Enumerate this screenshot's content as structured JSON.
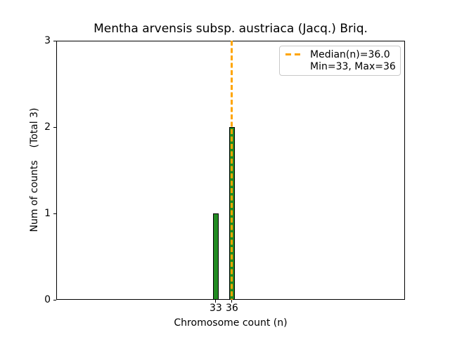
{
  "chart_data": {
    "type": "bar",
    "title": "Mentha arvensis subsp. austriaca (Jacq.) Briq.",
    "xlabel": "Chromosome count (n)",
    "ylabel": "Num of counts    (Total 3)",
    "x": [
      33,
      36
    ],
    "counts": [
      1,
      2
    ],
    "bar_width_data_units": 1,
    "bar_color": "#228b22",
    "bar_edge_color": "#000000",
    "median": {
      "value": 36.0,
      "color": "#ffa500",
      "style": "dashed"
    },
    "min": 33,
    "max": 36,
    "total": 3,
    "xlim": [
      3.4,
      68.1
    ],
    "ylim": [
      0,
      3
    ],
    "xticks": [
      "33",
      "36"
    ],
    "xtick_values": [
      33,
      36
    ],
    "yticks": [
      "0",
      "1",
      "2",
      "3"
    ],
    "ytick_values": [
      0,
      1,
      2,
      3
    ],
    "grid": false,
    "legend_position": "upper right"
  },
  "legend": {
    "items": [
      {
        "label": "Median(n)=36.0",
        "sample": "orange-dashed-line"
      },
      {
        "label": "Min=33, Max=36",
        "sample": null
      }
    ]
  }
}
